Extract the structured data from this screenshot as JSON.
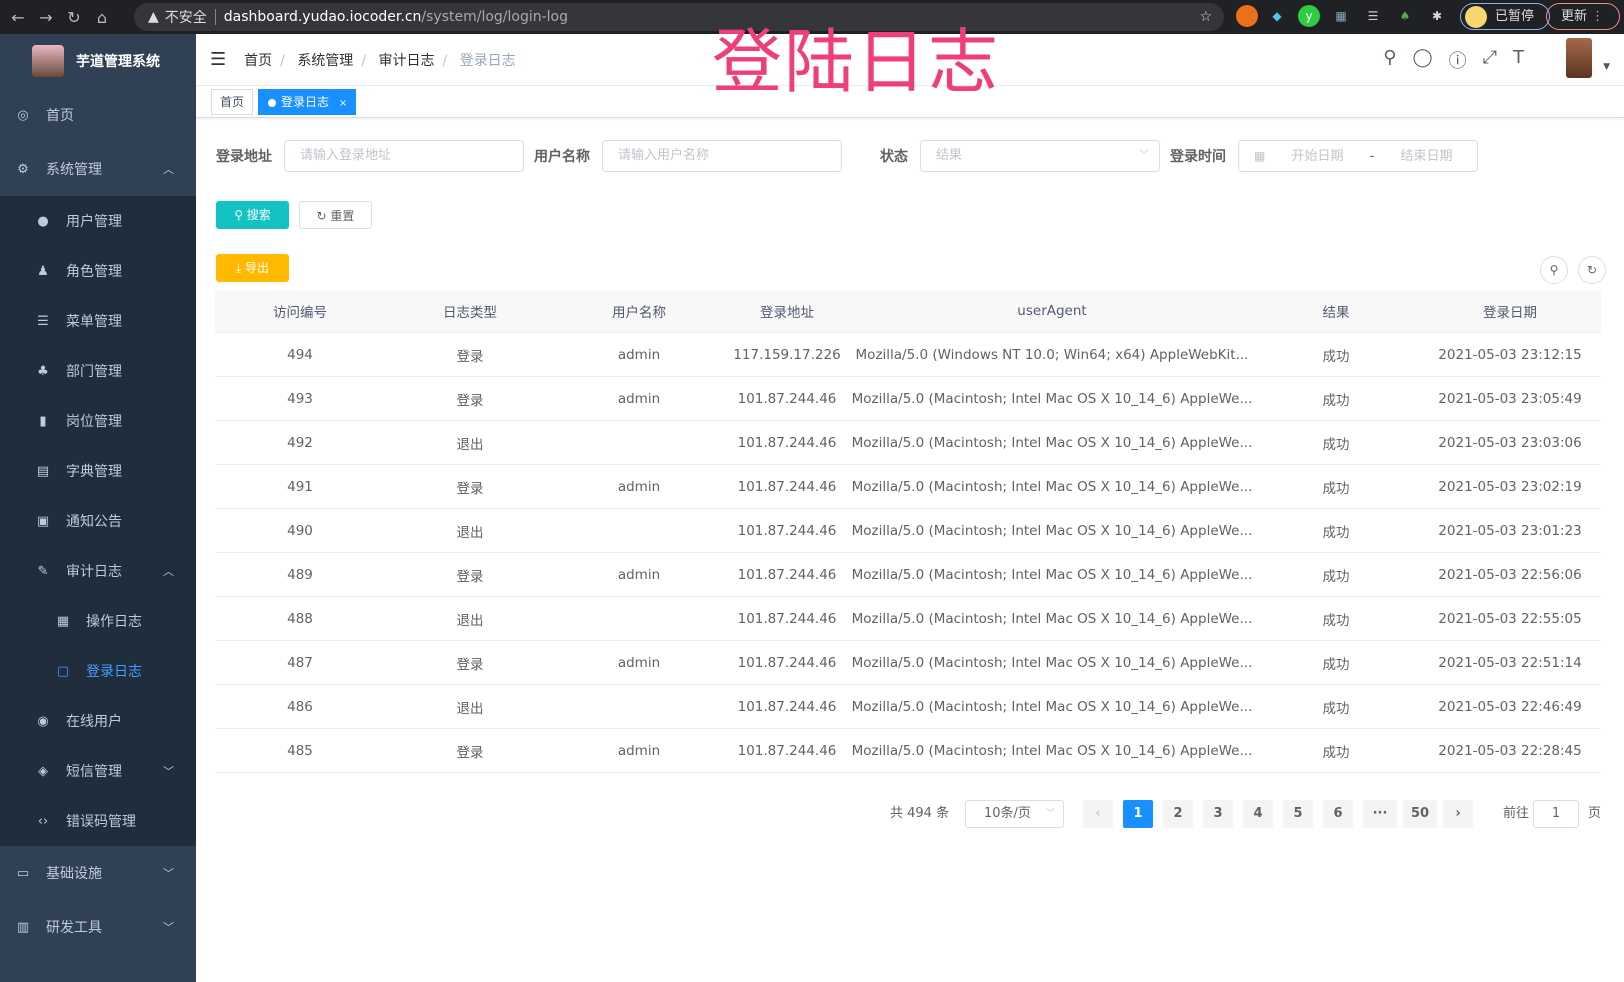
{
  "browser": {
    "back": "←",
    "forward": "→",
    "reload": "↻",
    "home": "⌂",
    "security": "不安全",
    "host": "dashboard.yudao.iocoder.cn",
    "path": "/system/log/login-log",
    "paused": "已暂停",
    "update": "更新"
  },
  "overlay_title": "登陆日志",
  "sidebar": {
    "title": "芋道管理系统",
    "items": [
      {
        "label": "首页",
        "icon": "dashboard-icon",
        "glyph": "◎",
        "level": 0
      },
      {
        "label": "系统管理",
        "icon": "gear-icon",
        "glyph": "⚙",
        "level": 0,
        "arrow": "︿"
      },
      {
        "label": "用户管理",
        "icon": "user-icon",
        "glyph": "●",
        "level": 1
      },
      {
        "label": "角色管理",
        "icon": "peoples-icon",
        "glyph": "♟",
        "level": 1
      },
      {
        "label": "菜单管理",
        "icon": "tree-table-icon",
        "glyph": "☰",
        "level": 1
      },
      {
        "label": "部门管理",
        "icon": "tree-icon",
        "glyph": "♣",
        "level": 1
      },
      {
        "label": "岗位管理",
        "icon": "post-icon",
        "glyph": "▮",
        "level": 1
      },
      {
        "label": "字典管理",
        "icon": "dict-icon",
        "glyph": "▤",
        "level": 1
      },
      {
        "label": "通知公告",
        "icon": "message-icon",
        "glyph": "▣",
        "level": 1
      },
      {
        "label": "审计日志",
        "icon": "log-icon",
        "glyph": "✎",
        "level": 1,
        "arrow": "︿"
      },
      {
        "label": "操作日志",
        "icon": "form-icon",
        "glyph": "▦",
        "level": 2
      },
      {
        "label": "登录日志",
        "icon": "logininfor-icon",
        "glyph": "▢",
        "level": 2,
        "active": true
      },
      {
        "label": "在线用户",
        "icon": "online-icon",
        "glyph": "◉",
        "level": 1
      },
      {
        "label": "短信管理",
        "icon": "validcode-icon",
        "glyph": "◈",
        "level": 1,
        "arrow": "﹀"
      },
      {
        "label": "错误码管理",
        "icon": "code-icon",
        "glyph": "‹›",
        "level": 1
      },
      {
        "label": "基础设施",
        "icon": "monitor-icon",
        "glyph": "▭",
        "level": 0,
        "arrow": "﹀"
      },
      {
        "label": "研发工具",
        "icon": "tool-icon",
        "glyph": "▥",
        "level": 0,
        "arrow": "﹀"
      }
    ]
  },
  "breadcrumb": [
    "首页",
    "系统管理",
    "审计日志",
    "登录日志"
  ],
  "tags": [
    {
      "label": "首页"
    },
    {
      "label": "登录日志",
      "close": "×"
    }
  ],
  "filters": {
    "ip_label": "登录地址",
    "ip_placeholder": "请输入登录地址",
    "user_label": "用户名称",
    "user_placeholder": "请输入用户名称",
    "status_label": "状态",
    "status_placeholder": "结果",
    "time_label": "登录时间",
    "start_placeholder": "开始日期",
    "range_sep": "-",
    "end_placeholder": "结束日期"
  },
  "buttons": {
    "search": "搜索",
    "reset": "重置",
    "export": "导出"
  },
  "colors": {
    "sidebar": "#304156",
    "primary": "#1890ff",
    "search": "#13c2c2",
    "export": "#ffba00",
    "overlay": "#ee3f78"
  },
  "table": {
    "headers": [
      "访问编号",
      "日志类型",
      "用户名称",
      "登录地址",
      "userAgent",
      "结果",
      "登录日期"
    ],
    "rows": [
      [
        "494",
        "登录",
        "admin",
        "117.159.17.226",
        "Mozilla/5.0 (Windows NT 10.0; Win64; x64) AppleWebKit...",
        "成功",
        "2021-05-03 23:12:15"
      ],
      [
        "493",
        "登录",
        "admin",
        "101.87.244.46",
        "Mozilla/5.0 (Macintosh; Intel Mac OS X 10_14_6) AppleWe...",
        "成功",
        "2021-05-03 23:05:49"
      ],
      [
        "492",
        "退出",
        "",
        "101.87.244.46",
        "Mozilla/5.0 (Macintosh; Intel Mac OS X 10_14_6) AppleWe...",
        "成功",
        "2021-05-03 23:03:06"
      ],
      [
        "491",
        "登录",
        "admin",
        "101.87.244.46",
        "Mozilla/5.0 (Macintosh; Intel Mac OS X 10_14_6) AppleWe...",
        "成功",
        "2021-05-03 23:02:19"
      ],
      [
        "490",
        "退出",
        "",
        "101.87.244.46",
        "Mozilla/5.0 (Macintosh; Intel Mac OS X 10_14_6) AppleWe...",
        "成功",
        "2021-05-03 23:01:23"
      ],
      [
        "489",
        "登录",
        "admin",
        "101.87.244.46",
        "Mozilla/5.0 (Macintosh; Intel Mac OS X 10_14_6) AppleWe...",
        "成功",
        "2021-05-03 22:56:06"
      ],
      [
        "488",
        "退出",
        "",
        "101.87.244.46",
        "Mozilla/5.0 (Macintosh; Intel Mac OS X 10_14_6) AppleWe...",
        "成功",
        "2021-05-03 22:55:05"
      ],
      [
        "487",
        "登录",
        "admin",
        "101.87.244.46",
        "Mozilla/5.0 (Macintosh; Intel Mac OS X 10_14_6) AppleWe...",
        "成功",
        "2021-05-03 22:51:14"
      ],
      [
        "486",
        "退出",
        "",
        "101.87.244.46",
        "Mozilla/5.0 (Macintosh; Intel Mac OS X 10_14_6) AppleWe...",
        "成功",
        "2021-05-03 22:46:49"
      ],
      [
        "485",
        "登录",
        "admin",
        "101.87.244.46",
        "Mozilla/5.0 (Macintosh; Intel Mac OS X 10_14_6) AppleWe...",
        "成功",
        "2021-05-03 22:28:45"
      ]
    ]
  },
  "pagination": {
    "total": "共 494 条",
    "page_size": "10条/页",
    "prev": "‹",
    "next": "›",
    "pages": [
      "1",
      "2",
      "3",
      "4",
      "5",
      "6",
      "···",
      "50"
    ],
    "current": "1",
    "goto_label": "前往",
    "goto_value": "1",
    "goto_suffix": "页"
  }
}
